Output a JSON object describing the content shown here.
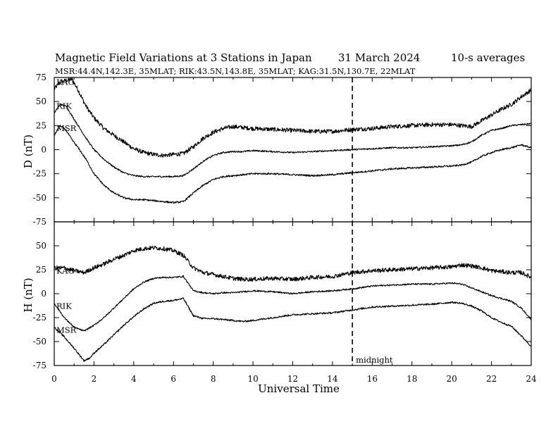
{
  "header": {
    "title": "Magnetic Field Variations at 3 Stations in Japan",
    "date": "31 March   2024",
    "averaging": "10-s averages",
    "stations_line": "MSR:44.4N,142.3E, 35MLAT;  RIK:43.5N,143.8E, 35MLAT;  KAG:31.5N,130.7E, 22MLAT"
  },
  "chart_data": {
    "type": "line",
    "xlabel": "Universal Time",
    "xlim": [
      0,
      24
    ],
    "xticks": [
      0,
      2,
      4,
      6,
      8,
      10,
      12,
      14,
      16,
      18,
      20,
      22,
      24
    ],
    "marker": {
      "x": 15,
      "label": "midnight",
      "style": "dashed"
    },
    "panels": [
      {
        "id": "D",
        "ylabel": "D (nT)",
        "ylim": [
          -75,
          75
        ],
        "yticks": [
          75,
          50,
          25,
          0,
          -25,
          -50,
          -75
        ],
        "series": [
          {
            "name": "KAG",
            "x": [
              0,
              0.3,
              0.6,
              0.9,
              1.2,
              1.6,
              2.0,
              2.5,
              3.0,
              3.5,
              4.0,
              4.5,
              5.0,
              5.5,
              6.0,
              6.5,
              7.0,
              7.5,
              8.0,
              8.5,
              9.0,
              9.5,
              10,
              11,
              12,
              13,
              14,
              15,
              16,
              17,
              18,
              19,
              20,
              20.5,
              21,
              21.5,
              22,
              22.5,
              23,
              23.5,
              24
            ],
            "y": [
              63,
              70,
              72,
              73,
              62,
              45,
              33,
              22,
              15,
              8,
              1,
              -3,
              -5,
              -6,
              -5,
              -4,
              3,
              12,
              18,
              22,
              24,
              23,
              22,
              21,
              20,
              19,
              19,
              21,
              22,
              24,
              25,
              26,
              26,
              25,
              24,
              30,
              36,
              42,
              47,
              55,
              62
            ]
          },
          {
            "name": "RIK",
            "x": [
              0,
              0.3,
              0.6,
              0.9,
              1.2,
              1.6,
              2.0,
              2.5,
              3.0,
              3.5,
              4.0,
              4.5,
              5.0,
              5.5,
              6.0,
              6.5,
              7.0,
              7.5,
              8.0,
              8.5,
              9.0,
              9.5,
              10,
              11,
              12,
              13,
              14,
              15,
              16,
              17,
              18,
              19,
              20,
              20.5,
              21,
              21.5,
              22,
              22.5,
              23,
              23.5,
              24
            ],
            "y": [
              38,
              47,
              45,
              35,
              25,
              12,
              0,
              -10,
              -18,
              -24,
              -27,
              -28,
              -28,
              -28,
              -28,
              -27,
              -20,
              -12,
              -6,
              -3,
              -2,
              -2,
              -1,
              -2,
              -3,
              -2,
              -1,
              0,
              1,
              2,
              2,
              3,
              4,
              5,
              8,
              15,
              20,
              22,
              25,
              26,
              27
            ]
          },
          {
            "name": "MSR",
            "x": [
              0,
              0.3,
              0.6,
              0.9,
              1.2,
              1.6,
              2.0,
              2.5,
              3.0,
              3.5,
              4.0,
              4.5,
              5.0,
              5.5,
              6.0,
              6.5,
              7.0,
              7.5,
              8.0,
              8.5,
              9.0,
              9.5,
              10,
              11,
              12,
              13,
              14,
              15,
              16,
              17,
              18,
              19,
              20,
              20.5,
              21,
              21.5,
              22,
              22.5,
              23,
              23.5,
              24
            ],
            "y": [
              15,
              25,
              20,
              10,
              2,
              -10,
              -25,
              -37,
              -45,
              -50,
              -52,
              -52,
              -53,
              -54,
              -55,
              -54,
              -45,
              -37,
              -31,
              -28,
              -27,
              -26,
              -25,
              -25,
              -26,
              -27,
              -26,
              -24,
              -22,
              -20,
              -19,
              -18,
              -17,
              -16,
              -13,
              -7,
              -3,
              0,
              2,
              5,
              2
            ]
          }
        ]
      },
      {
        "id": "H",
        "ylabel": "H (nT)",
        "ylim": [
          -75,
          75
        ],
        "yticks": [
          50,
          25,
          0,
          -25,
          -50,
          -75
        ],
        "series": [
          {
            "name": "KAG",
            "x": [
              0,
              0.5,
              1.0,
              1.5,
              2.0,
              2.5,
              3.0,
              3.5,
              4.0,
              4.5,
              5.0,
              5.5,
              6.0,
              6.5,
              7.0,
              7.5,
              8.0,
              8.5,
              9.0,
              9.5,
              10,
              11,
              12,
              13,
              14,
              15,
              16,
              17,
              18,
              19,
              20,
              20.5,
              21,
              21.5,
              22,
              22.5,
              23,
              23.5,
              24
            ],
            "y": [
              27,
              27,
              24,
              22,
              27,
              31,
              36,
              40,
              45,
              47,
              48,
              47,
              45,
              40,
              27,
              22,
              20,
              18,
              16,
              15,
              15,
              16,
              15,
              17,
              18,
              22,
              24,
              25,
              26,
              27,
              28,
              30,
              29,
              27,
              24,
              23,
              22,
              22,
              17
            ]
          },
          {
            "name": "RIK",
            "x": [
              0,
              0.5,
              1.0,
              1.5,
              2.0,
              2.5,
              3.0,
              3.5,
              4.0,
              4.5,
              5.0,
              5.5,
              6.0,
              6.5,
              7.0,
              7.5,
              8.0,
              8.5,
              9.0,
              9.5,
              10,
              11,
              12,
              13,
              14,
              15,
              16,
              17,
              18,
              19,
              20,
              20.5,
              21,
              21.5,
              22,
              22.5,
              23,
              23.5,
              24
            ],
            "y": [
              -10,
              -25,
              -35,
              -39,
              -33,
              -25,
              -15,
              -5,
              5,
              12,
              16,
              17,
              17,
              18,
              3,
              1,
              0,
              1,
              1,
              2,
              3,
              2,
              0,
              2,
              3,
              5,
              8,
              9,
              10,
              10,
              11,
              10,
              6,
              2,
              -2,
              -5,
              -8,
              -15,
              -27
            ]
          },
          {
            "name": "MSR",
            "x": [
              0,
              0.5,
              1.0,
              1.5,
              1.8,
              2.0,
              2.5,
              3.0,
              3.5,
              4.0,
              4.5,
              5.0,
              5.5,
              6.0,
              6.5,
              7.0,
              7.5,
              8.0,
              8.5,
              9.0,
              9.5,
              10,
              11,
              12,
              13,
              14,
              15,
              16,
              17,
              18,
              19,
              20,
              20.5,
              21,
              21.5,
              22,
              22.5,
              23,
              23.5,
              24
            ],
            "y": [
              -35,
              -45,
              -57,
              -70,
              -67,
              -62,
              -53,
              -43,
              -33,
              -24,
              -16,
              -10,
              -8,
              -7,
              -5,
              -23,
              -26,
              -26,
              -27,
              -28,
              -29,
              -28,
              -25,
              -22,
              -21,
              -20,
              -17,
              -14,
              -13,
              -12,
              -11,
              -9,
              -10,
              -13,
              -18,
              -25,
              -30,
              -34,
              -44,
              -55
            ]
          }
        ]
      }
    ]
  }
}
